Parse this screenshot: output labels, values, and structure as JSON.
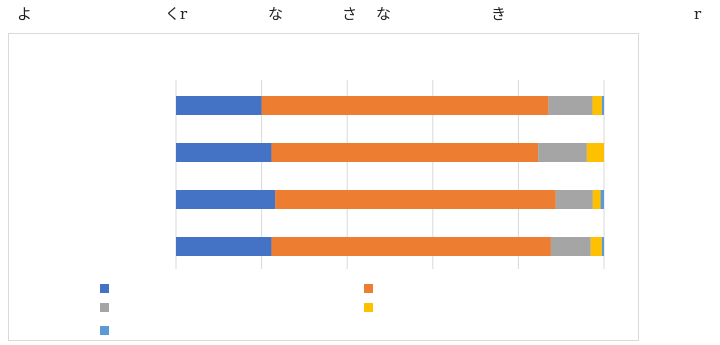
{
  "header": {
    "chars": [
      "よ",
      "くr",
      "な",
      "さ",
      "な",
      "き",
      "r"
    ]
  },
  "chart_data": {
    "type": "bar",
    "orientation": "horizontal",
    "stacked": "percent",
    "categories": [
      "",
      "",
      "",
      ""
    ],
    "series": [
      {
        "color": "#4472C4",
        "values": [
          20,
          22.3,
          23.2,
          22.3
        ]
      },
      {
        "color": "#ED7D31",
        "values": [
          67,
          62.3,
          65.5,
          65.3
        ]
      },
      {
        "color": "#A5A5A5",
        "values": [
          10.3,
          11.4,
          8.7,
          9.3
        ]
      },
      {
        "color": "#FFC000",
        "values": [
          2.2,
          4.0,
          1.8,
          2.6
        ]
      },
      {
        "color": "#5B9BD5",
        "values": [
          0.5,
          0,
          0.8,
          0.5
        ]
      }
    ],
    "xlim": [
      0,
      100
    ],
    "grid": true,
    "legend": "bottom"
  }
}
